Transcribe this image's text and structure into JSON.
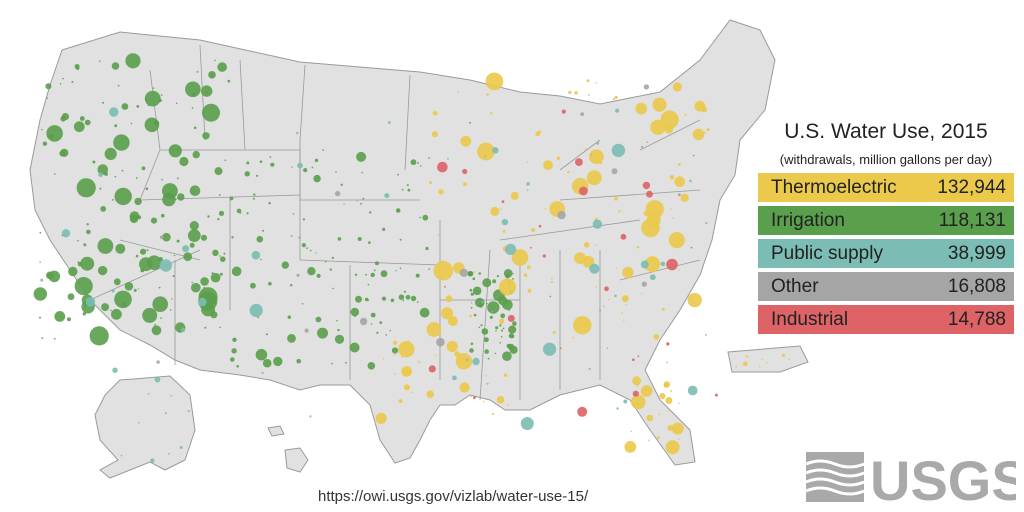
{
  "title": "U.S. Water Use, 2015",
  "subtitle": "(withdrawals, million gallons per day)",
  "categories": [
    {
      "label": "Thermoelectric",
      "value": "132,944",
      "color": "#ebc94a"
    },
    {
      "label": "Irrigation",
      "value": "118,131",
      "color": "#5a9f4c"
    },
    {
      "label": "Public supply",
      "value": "38,999",
      "color": "#7bbcb4"
    },
    {
      "label": "Other",
      "value": "16,808",
      "color": "#a5a5a5"
    },
    {
      "label": "Industrial",
      "value": "14,788",
      "color": "#dd6367"
    }
  ],
  "source_url": "https://owi.usgs.gov/vizlab/water-use-15/",
  "logo_text": "USGS",
  "map_colors": {
    "land": "#e1e1e1",
    "border": "#ffffff",
    "state_line": "#9a9a9a"
  }
}
